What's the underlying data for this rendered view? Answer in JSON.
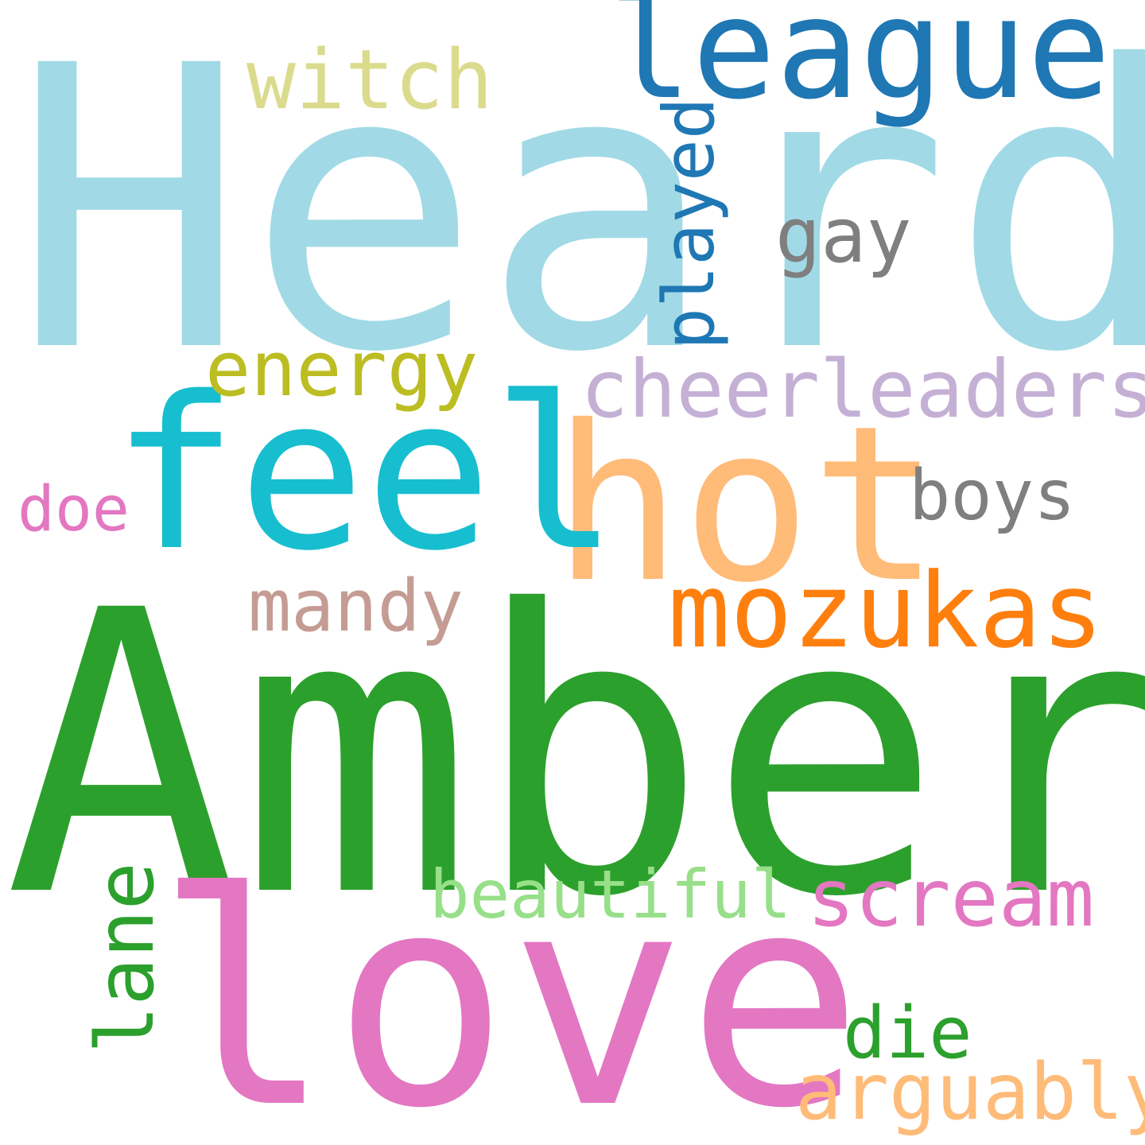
{
  "words": {
    "heard": {
      "text": "Heard",
      "color": "#a1dae6"
    },
    "amber": {
      "text": "Amber",
      "color": "#2ca02c"
    },
    "love": {
      "text": "love",
      "color": "#e377c2"
    },
    "hot": {
      "text": "hot",
      "color": "#ffbb78"
    },
    "feel": {
      "text": "feel",
      "color": "#17becf"
    },
    "league": {
      "text": "league",
      "color": "#1f77b4"
    },
    "mozukas": {
      "text": "mozukas",
      "color": "#ff7f0e"
    },
    "cheerleaders": {
      "text": "cheerleaders",
      "color": "#c5b0d5"
    },
    "scream": {
      "text": "scream",
      "color": "#e377c2"
    },
    "arguably": {
      "text": "arguably",
      "color": "#ffbb78"
    },
    "witch": {
      "text": "witch",
      "color": "#dbdb8d"
    },
    "energy": {
      "text": "energy",
      "color": "#bcbd22"
    },
    "mandy": {
      "text": "mandy",
      "color": "#c49c94"
    },
    "beautiful": {
      "text": "beautiful",
      "color": "#98df8a"
    },
    "boys": {
      "text": "boys",
      "color": "#7f7f7f"
    },
    "gay": {
      "text": "gay",
      "color": "#7f7f7f"
    },
    "die": {
      "text": "die",
      "color": "#2ca02c"
    },
    "doe": {
      "text": "doe",
      "color": "#e377c2"
    },
    "played": {
      "text": "played",
      "color": "#1f77b4"
    },
    "lane": {
      "text": "lane",
      "color": "#2ca02c"
    }
  }
}
